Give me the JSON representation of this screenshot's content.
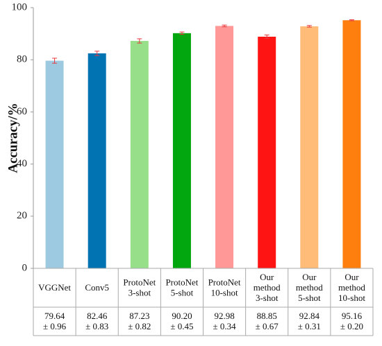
{
  "chart_data": {
    "type": "bar",
    "ylabel": "Accuracy/%",
    "ylim": [
      0,
      100
    ],
    "yticks": [
      0,
      20,
      40,
      60,
      80,
      100
    ],
    "grid": false,
    "categories": [
      [
        "VGGNet"
      ],
      [
        "Conv5"
      ],
      [
        "ProtoNet",
        "3-shot"
      ],
      [
        "ProtoNet",
        "5-shot"
      ],
      [
        "ProtoNet",
        "10-shot"
      ],
      [
        "Our",
        "method",
        "3-shot"
      ],
      [
        "Our",
        "method",
        "5-shot"
      ],
      [
        "Our",
        "method",
        "10-shot"
      ]
    ],
    "values": [
      79.64,
      82.46,
      87.23,
      90.2,
      92.98,
      88.85,
      92.84,
      95.16
    ],
    "errors": [
      0.96,
      0.83,
      0.82,
      0.45,
      0.34,
      0.67,
      0.31,
      0.2
    ],
    "table_rows": [
      [
        "79.64",
        "± 0.96"
      ],
      [
        "82.46",
        "± 0.83"
      ],
      [
        "87.23",
        "± 0.82"
      ],
      [
        "90.20",
        "± 0.45"
      ],
      [
        "92.98",
        "± 0.34"
      ],
      [
        "88.85",
        "± 0.67"
      ],
      [
        "92.84",
        "± 0.31"
      ],
      [
        "95.16",
        "± 0.20"
      ]
    ],
    "colors": [
      "#9ecae1",
      "#0173b2",
      "#98df8a",
      "#02a70f",
      "#ff9896",
      "#ff1414",
      "#ffbb78",
      "#ff7f0e"
    ],
    "error_color": "#e8383d"
  }
}
